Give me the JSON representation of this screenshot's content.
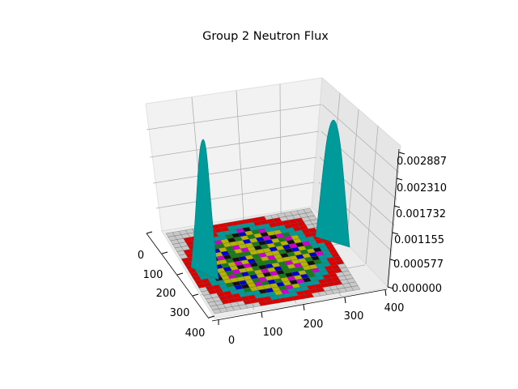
{
  "chart_data": {
    "type": "surface3d",
    "title": "Group 2 Neutron Flux",
    "x_ticks": [
      "0",
      "100",
      "200",
      "300",
      "400"
    ],
    "y_ticks": [
      "0",
      "100",
      "200",
      "300",
      "400"
    ],
    "z_ticks": [
      "0.000000",
      "0.000577",
      "0.001155",
      "0.001732",
      "0.002310",
      "0.002887"
    ],
    "xlim": [
      0,
      400
    ],
    "ylim": [
      0,
      400
    ],
    "zlim": [
      0,
      0.002887
    ],
    "grid": true,
    "legend": "none",
    "peaks": [
      {
        "x": 30,
        "y": 60,
        "z": 0.00255
      },
      {
        "x": 340,
        "y": 330,
        "z": 0.00285
      }
    ],
    "colors": {
      "flux_surface": "#009999",
      "red_region": "#dd0000",
      "gray_region": "#c8c8c8",
      "yellow_region": "#b4b400",
      "green_region": "#197a19",
      "magenta_region": "#cc00cc",
      "blue_region": "#0000cc",
      "black_region": "#111111",
      "pane": "#f2f2f2",
      "pane_side": "#e6e6e6",
      "grid": "#b0b0b0"
    }
  }
}
